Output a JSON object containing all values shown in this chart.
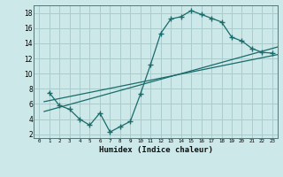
{
  "title": "",
  "xlabel": "Humidex (Indice chaleur)",
  "bg_color": "#cce8e8",
  "grid_color": "#aacccc",
  "line_color": "#1a6b6b",
  "xlim": [
    -0.5,
    23.5
  ],
  "ylim": [
    1.5,
    19.0
  ],
  "xticks": [
    0,
    1,
    2,
    3,
    4,
    5,
    6,
    7,
    8,
    9,
    10,
    11,
    12,
    13,
    14,
    15,
    16,
    17,
    18,
    19,
    20,
    21,
    22,
    23
  ],
  "yticks": [
    2,
    4,
    6,
    8,
    10,
    12,
    14,
    16,
    18
  ],
  "curve_x": [
    1,
    2,
    3,
    4,
    5,
    6,
    7,
    8,
    9,
    10,
    11,
    12,
    13,
    14,
    15,
    16,
    17,
    18,
    19,
    20,
    21,
    22,
    23
  ],
  "curve_y": [
    7.5,
    5.8,
    5.3,
    4.0,
    3.2,
    4.8,
    2.3,
    3.0,
    3.7,
    7.3,
    11.2,
    15.3,
    17.2,
    17.5,
    18.3,
    17.8,
    17.3,
    16.8,
    14.8,
    14.3,
    13.3,
    12.8,
    12.7
  ],
  "line1_x": [
    0.5,
    23.5
  ],
  "line1_y": [
    5.0,
    13.5
  ],
  "line2_x": [
    0.5,
    23.5
  ],
  "line2_y": [
    6.3,
    12.5
  ]
}
